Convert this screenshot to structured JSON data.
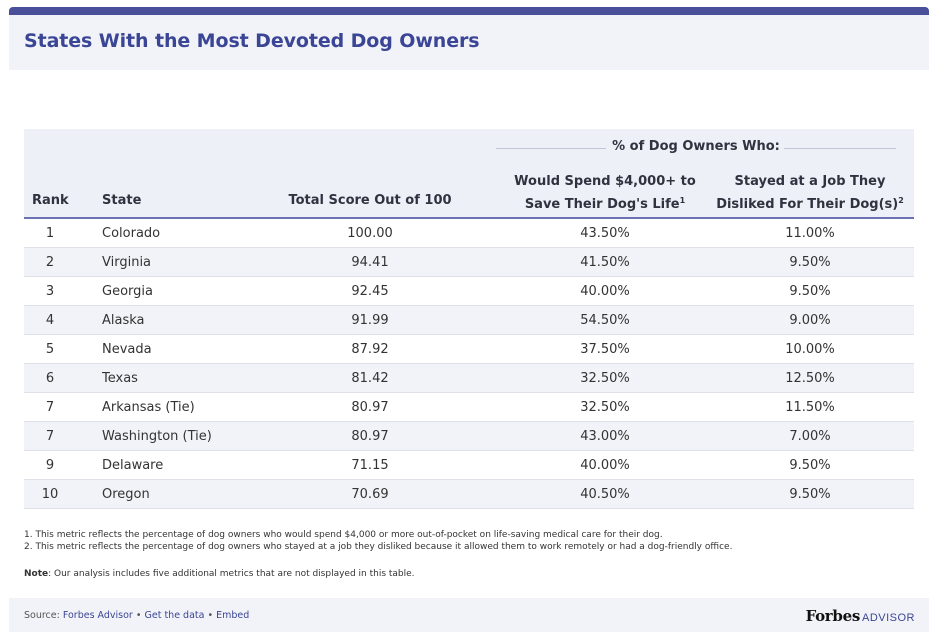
{
  "title": "States With the Most Devoted Dog Owners",
  "chart_data": {
    "type": "table",
    "title": "States With the Most Devoted Dog Owners",
    "group_header": "% of Dog Owners Who:",
    "columns": [
      {
        "label": "Rank"
      },
      {
        "label": "State"
      },
      {
        "label": "Total Score Out of 100"
      },
      {
        "label_line1": "Would Spend $4,000+ to",
        "label_line2": "Save Their Dog's Life",
        "sup": "1"
      },
      {
        "label_line1": "Stayed at a Job They",
        "label_line2": "Disliked For Their Dog(s)",
        "sup": "2"
      }
    ],
    "rows": [
      {
        "rank": "1",
        "state": "Colorado",
        "score": "100.00",
        "spend": "43.50%",
        "job": "11.00%"
      },
      {
        "rank": "2",
        "state": "Virginia",
        "score": "94.41",
        "spend": "41.50%",
        "job": "9.50%"
      },
      {
        "rank": "3",
        "state": "Georgia",
        "score": "92.45",
        "spend": "40.00%",
        "job": "9.50%"
      },
      {
        "rank": "4",
        "state": "Alaska",
        "score": "91.99",
        "spend": "54.50%",
        "job": "9.00%"
      },
      {
        "rank": "5",
        "state": "Nevada",
        "score": "87.92",
        "spend": "37.50%",
        "job": "10.00%"
      },
      {
        "rank": "6",
        "state": "Texas",
        "score": "81.42",
        "spend": "32.50%",
        "job": "12.50%"
      },
      {
        "rank": "7",
        "state": "Arkansas (Tie)",
        "score": "80.97",
        "spend": "32.50%",
        "job": "11.50%"
      },
      {
        "rank": "7",
        "state": "Washington (Tie)",
        "score": "80.97",
        "spend": "43.00%",
        "job": "7.00%"
      },
      {
        "rank": "9",
        "state": "Delaware",
        "score": "71.15",
        "spend": "40.00%",
        "job": "9.50%"
      },
      {
        "rank": "10",
        "state": "Oregon",
        "score": "70.69",
        "spend": "40.50%",
        "job": "9.50%"
      }
    ]
  },
  "footnotes": [
    "1. This metric reflects the percentage of dog owners who would spend $4,000 or more out-of-pocket on life-saving medical care for their dog.",
    "2. This metric reflects the percentage of dog owners who stayed at a job they disliked because it allowed them to work remotely or had a dog-friendly office."
  ],
  "note": {
    "label": "Note",
    "text": ": Our analysis includes five additional metrics that are not displayed in this table."
  },
  "footer": {
    "source_label": "Source: ",
    "source_link": "Forbes Advisor",
    "sep": " • ",
    "get_data": "Get the data",
    "embed": "Embed",
    "brand_main": "Forbes",
    "brand_sub": "ADVISOR"
  },
  "colors": {
    "accent": "#3b4595",
    "header_bg": "#eef0f7",
    "alt_row": "#f2f3f8"
  }
}
